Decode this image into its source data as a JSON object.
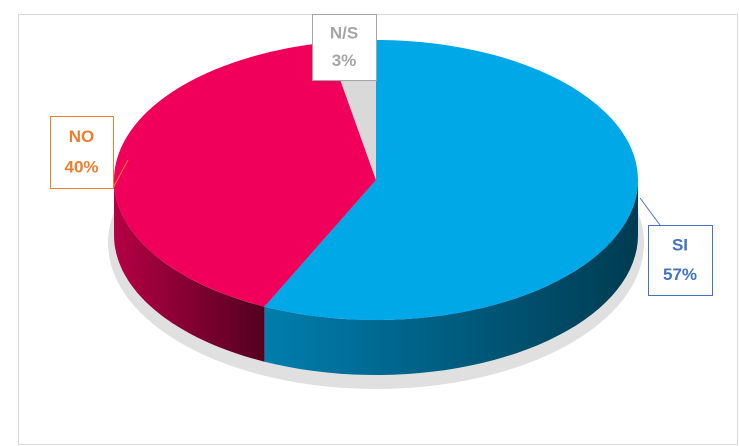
{
  "chart_data": {
    "type": "pie3d",
    "categories": [
      "SI",
      "NO",
      "N/S"
    ],
    "values": [
      57,
      40,
      3
    ],
    "value_labels": [
      "57%",
      "40%",
      "3%"
    ],
    "colors": [
      "#00a8e8",
      "#f0005a",
      "#d9d9d9"
    ],
    "label_colors": [
      "#4472c4",
      "#ed7d31",
      "#a5a5a5"
    ]
  }
}
